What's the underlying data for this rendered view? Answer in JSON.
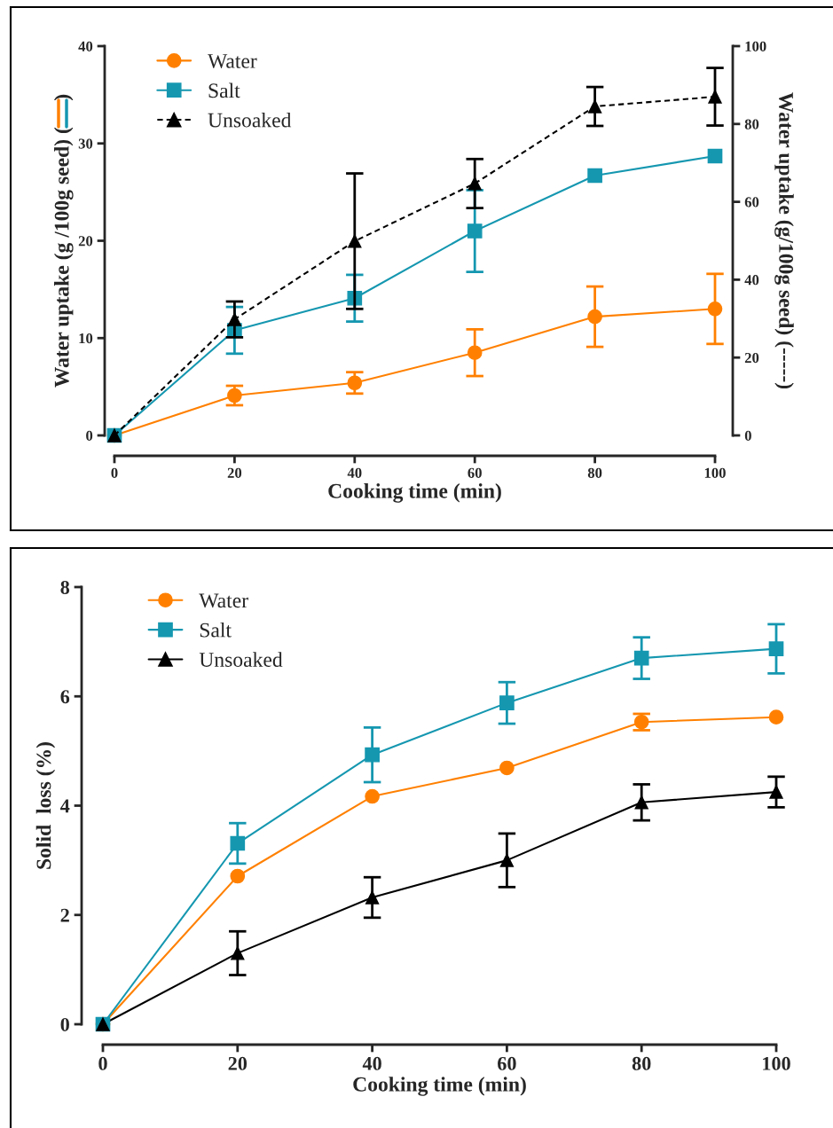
{
  "chart_data": [
    {
      "type": "line",
      "xlabel": "Cooking time (min)",
      "ylabel": "Water uptake (g /100g seed) (     )",
      "y2label": "Water uptake (g/100g seed) (-----)",
      "x": [
        0,
        20,
        40,
        60,
        80,
        100
      ],
      "xlim": [
        0,
        100
      ],
      "xticks": [
        0,
        20,
        40,
        60,
        80,
        100
      ],
      "ylim": [
        0,
        40
      ],
      "yticks": [
        0,
        10,
        20,
        30,
        40
      ],
      "y2lim": [
        0,
        100
      ],
      "y2ticks": [
        0,
        20,
        40,
        60,
        80,
        100
      ],
      "legend": "top left",
      "grid": false,
      "series": [
        {
          "name": "Water",
          "color": "#ff8000",
          "marker": "circle",
          "line_style": "solid",
          "values": [
            0,
            4.1,
            5.4,
            8.5,
            12.2,
            13.0
          ],
          "errors": [
            null,
            1.0,
            1.1,
            2.4,
            3.1,
            3.6
          ]
        },
        {
          "name": "Salt",
          "color": "#1597b0",
          "marker": "square",
          "line_style": "solid",
          "values": [
            0,
            10.8,
            14.1,
            21.0,
            26.7,
            28.7
          ],
          "errors": [
            null,
            2.4,
            2.4,
            4.2,
            null,
            null
          ]
        },
        {
          "name": "Unsoaked",
          "color": "#000000",
          "marker": "triangle",
          "line_style": "dashed",
          "axis": "y2",
          "values": [
            0,
            29.8,
            49.9,
            64.7,
            84.5,
            87.0
          ],
          "errors": [
            null,
            4.6,
            17.4,
            6.3,
            5.0,
            7.4
          ]
        }
      ]
    },
    {
      "type": "line",
      "xlabel": "Cooking time (min)",
      "ylabel": "Solid  loss (%)",
      "x": [
        0,
        20,
        40,
        60,
        80,
        100
      ],
      "xlim": [
        0,
        100
      ],
      "xticks": [
        0,
        20,
        40,
        60,
        80,
        100
      ],
      "ylim": [
        0,
        8
      ],
      "yticks": [
        0,
        2,
        4,
        6,
        8
      ],
      "legend": "top left",
      "grid": false,
      "series": [
        {
          "name": "Water",
          "color": "#ff8000",
          "marker": "circle",
          "line_style": "solid",
          "values": [
            0,
            2.71,
            4.17,
            4.69,
            5.53,
            5.62
          ],
          "errors": [
            null,
            null,
            null,
            null,
            0.15,
            null
          ]
        },
        {
          "name": "Salt",
          "color": "#1597b0",
          "marker": "square",
          "line_style": "solid",
          "values": [
            0,
            3.31,
            4.93,
            5.88,
            6.7,
            6.87
          ],
          "errors": [
            null,
            0.37,
            0.5,
            0.38,
            0.38,
            0.45
          ]
        },
        {
          "name": "Unsoaked",
          "color": "#000000",
          "marker": "triangle",
          "line_style": "solid",
          "values": [
            0,
            1.3,
            2.32,
            3.0,
            4.06,
            4.25
          ],
          "errors": [
            null,
            0.4,
            0.37,
            0.49,
            0.33,
            0.28
          ]
        }
      ]
    }
  ]
}
